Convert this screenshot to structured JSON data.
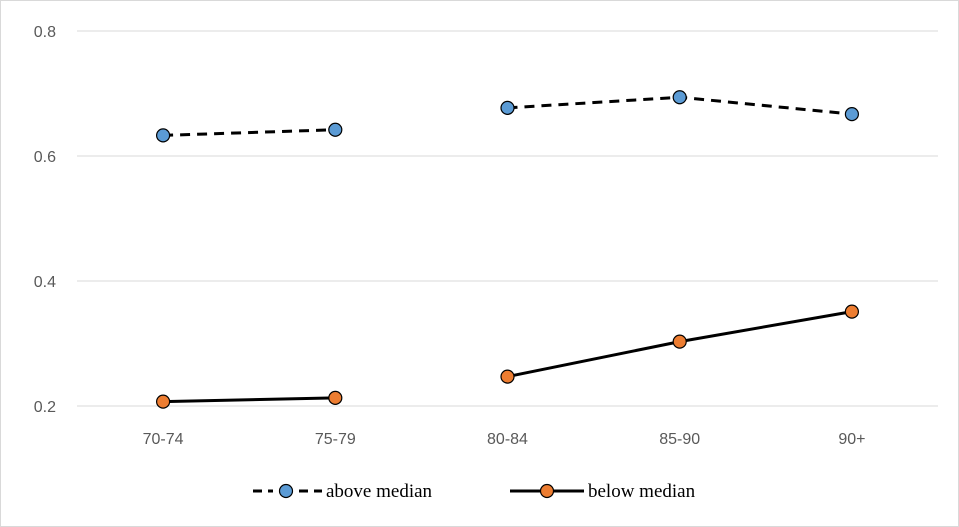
{
  "chart_data": {
    "type": "line",
    "categories": [
      "70-74",
      "75-79",
      "80-84",
      "85-90",
      "90+"
    ],
    "ylim": [
      0.2,
      0.8
    ],
    "yticks": [
      "0.2",
      "0.4",
      "0.6",
      "0.8"
    ],
    "grid": true,
    "legend_position": "bottom",
    "segment_breaks_after": [
      1
    ],
    "series": [
      {
        "name": "above median",
        "values": [
          0.633,
          0.642,
          0.677,
          0.694,
          0.667
        ],
        "line_style": "dashed",
        "marker_color": "#5b9bd5",
        "line_color": "#000000"
      },
      {
        "name": "below median",
        "values": [
          0.207,
          0.213,
          0.247,
          0.303,
          0.351
        ],
        "line_style": "solid",
        "marker_color": "#ed7d31",
        "line_color": "#000000"
      }
    ],
    "colors": {
      "grid": "#d9d9d9",
      "tick_text": "#595959"
    }
  }
}
